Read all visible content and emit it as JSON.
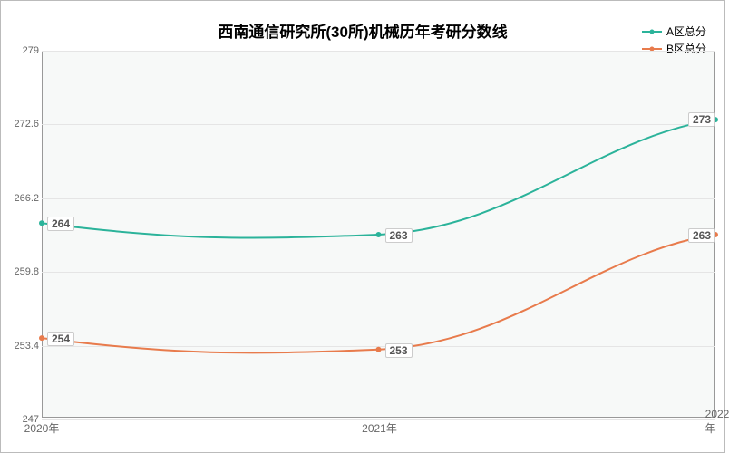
{
  "chart": {
    "type": "line",
    "title": "西南通信研究所(30所)机械历年考研分数线",
    "title_fontsize": 17,
    "background_color": "#f7f9f8",
    "plot_border_color": "#999999",
    "grid_color": "#e5e5e5",
    "x": {
      "categories": [
        "2020年",
        "2021年",
        "2022年"
      ],
      "tick_color": "#666666",
      "fontsize": 12
    },
    "y": {
      "min": 247,
      "max": 279,
      "ticks": [
        247,
        253.4,
        259.8,
        266.2,
        272.6,
        279
      ],
      "tick_color": "#666666",
      "fontsize": 11
    },
    "series": [
      {
        "name": "A区总分",
        "color": "#2bb39a",
        "values": [
          264,
          263,
          273
        ],
        "line_width": 2,
        "marker_radius": 3
      },
      {
        "name": "B区总分",
        "color": "#e87b4c",
        "values": [
          254,
          253,
          263
        ],
        "line_width": 2,
        "marker_radius": 3
      }
    ],
    "label_box": {
      "bg": "#ffffff",
      "border": "#cccccc",
      "fontsize": 12
    }
  }
}
